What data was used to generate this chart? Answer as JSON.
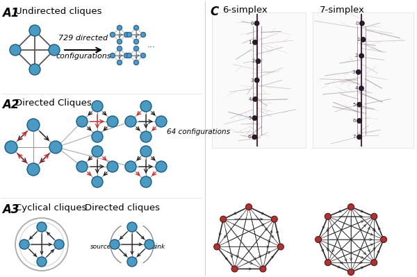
{
  "background_color": "#ffffff",
  "node_color": "#4a9bc4",
  "node_edge_color": "#1a5a84",
  "arrow_color_black": "#1a1a1a",
  "arrow_color_red": "#cc2222",
  "label_A1": "A1",
  "label_A2": "A2",
  "label_A3": "A3",
  "label_C": "C",
  "text_undirected": "Undirected cliques",
  "text_directed": "Directed Cliques",
  "text_cyclical": "Cyclical cliques",
  "text_directed2": "Directed cliques",
  "text_729": "729 directed",
  "text_config": "configurations",
  "text_64": "64 configurations",
  "text_source": "source",
  "text_sink": "sink",
  "text_6simplex": "6-simplex",
  "text_7simplex": "7-simplex"
}
